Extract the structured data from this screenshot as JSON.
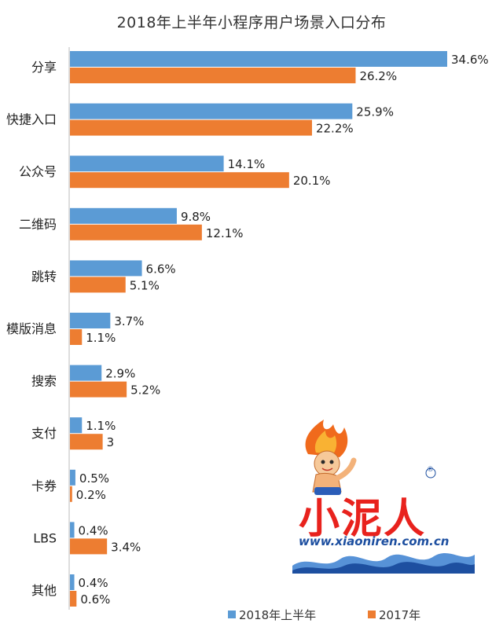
{
  "chart_data": {
    "type": "bar",
    "orientation": "horizontal",
    "title": "2018年上半年小程序用户场景入口分布",
    "categories": [
      "分享",
      "快捷入口",
      "公众号",
      "二维码",
      "跳转",
      "模版消息",
      "搜索",
      "支付",
      "卡券",
      "LBS",
      "其他"
    ],
    "series": [
      {
        "name": "2018年上半年",
        "color": "#5b9bd5",
        "values": [
          34.6,
          25.9,
          14.1,
          9.8,
          6.6,
          3.7,
          2.9,
          1.1,
          0.5,
          0.4,
          0.4
        ],
        "labels": [
          "34.6%",
          "25.9%",
          "14.1%",
          "9.8%",
          "6.6%",
          "3.7%",
          "2.9%",
          "1.1%",
          "0.5%",
          "0.4%",
          "0.4%"
        ]
      },
      {
        "name": "2017年",
        "color": "#ed7d31",
        "values": [
          26.2,
          22.2,
          20.1,
          12.1,
          5.1,
          1.1,
          5.2,
          3,
          0.2,
          3.4,
          0.6
        ],
        "labels": [
          "26.2%",
          "22.2%",
          "20.1%",
          "12.1%",
          "5.1%",
          "1.1%",
          "5.2%",
          "3",
          "0.2%",
          "3.4%",
          "0.6%"
        ]
      }
    ],
    "xlim": [
      0,
      34.6
    ],
    "grid": false,
    "legend_position": "bottom-right"
  },
  "watermark": {
    "brand": "小泥人",
    "url": "www.xiaoniren.com.cn",
    "registered": "®"
  }
}
